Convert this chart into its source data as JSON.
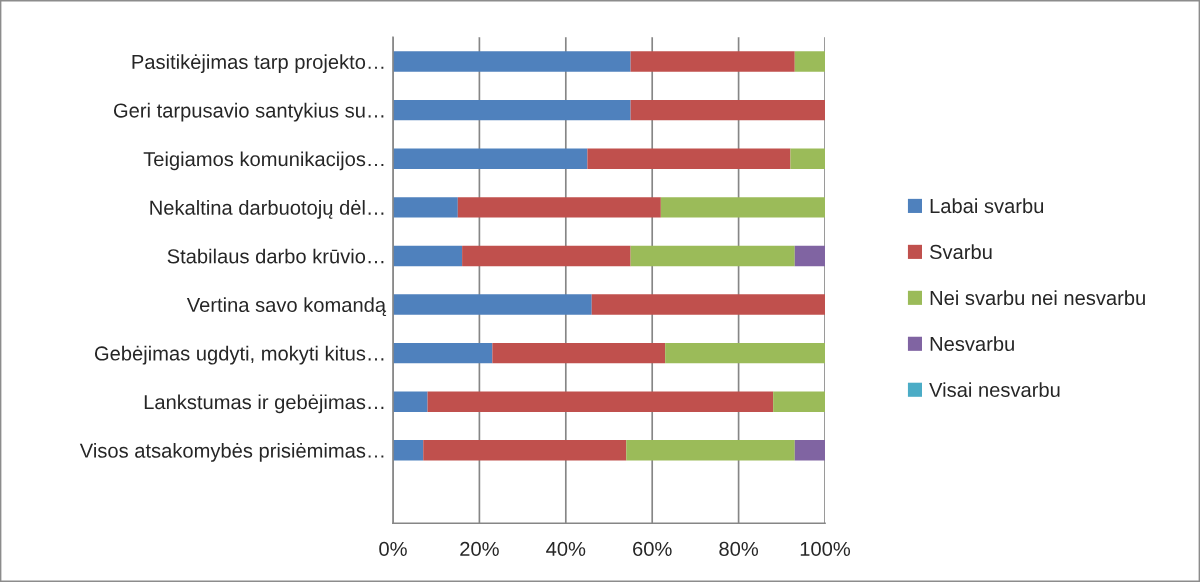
{
  "chart_data": {
    "type": "bar",
    "orientation": "horizontal",
    "stacked": true,
    "categories": [
      "Pasitikėjimas tarp projekto…",
      "Geri tarpusavio santykius su…",
      "Teigiamos komunikacijos…",
      "Nekaltina darbuotojų dėl…",
      "Stabilaus darbo krūvio…",
      "Vertina savo komandą",
      "Gebėjimas ugdyti, mokyti kitus…",
      "Lankstumas ir gebėjimas…",
      "Visos atsakomybės prisiėmimas…",
      null
    ],
    "series": [
      {
        "name": "Labai svarbu",
        "color": "#4f81bd",
        "values": [
          55,
          55,
          45,
          15,
          16,
          46,
          23,
          8,
          7,
          null
        ]
      },
      {
        "name": "Svarbu",
        "color": "#c0504d",
        "values": [
          38,
          45,
          47,
          47,
          39,
          54,
          40,
          80,
          47,
          null
        ]
      },
      {
        "name": "Nei svarbu nei nesvarbu",
        "color": "#9bbb59",
        "values": [
          7,
          null,
          8,
          38,
          38,
          null,
          37,
          12,
          39,
          null
        ]
      },
      {
        "name": "Nesvarbu",
        "color": "#8064a2",
        "values": [
          null,
          null,
          null,
          null,
          7,
          null,
          null,
          null,
          7,
          null
        ]
      },
      {
        "name": "Visai nesvarbu",
        "color": "#4bacc6",
        "values": [
          null,
          null,
          null,
          null,
          null,
          null,
          null,
          null,
          null,
          null
        ]
      }
    ],
    "xlim": [
      0,
      100
    ],
    "xticks": [
      {
        "value": 0,
        "label": "0%"
      },
      {
        "value": 20,
        "label": "20%"
      },
      {
        "value": 40,
        "label": "40%"
      },
      {
        "value": 60,
        "label": "60%"
      },
      {
        "value": 80,
        "label": "80%"
      },
      {
        "value": 100,
        "label": "100%"
      }
    ],
    "grid": "x",
    "legend": "right"
  }
}
